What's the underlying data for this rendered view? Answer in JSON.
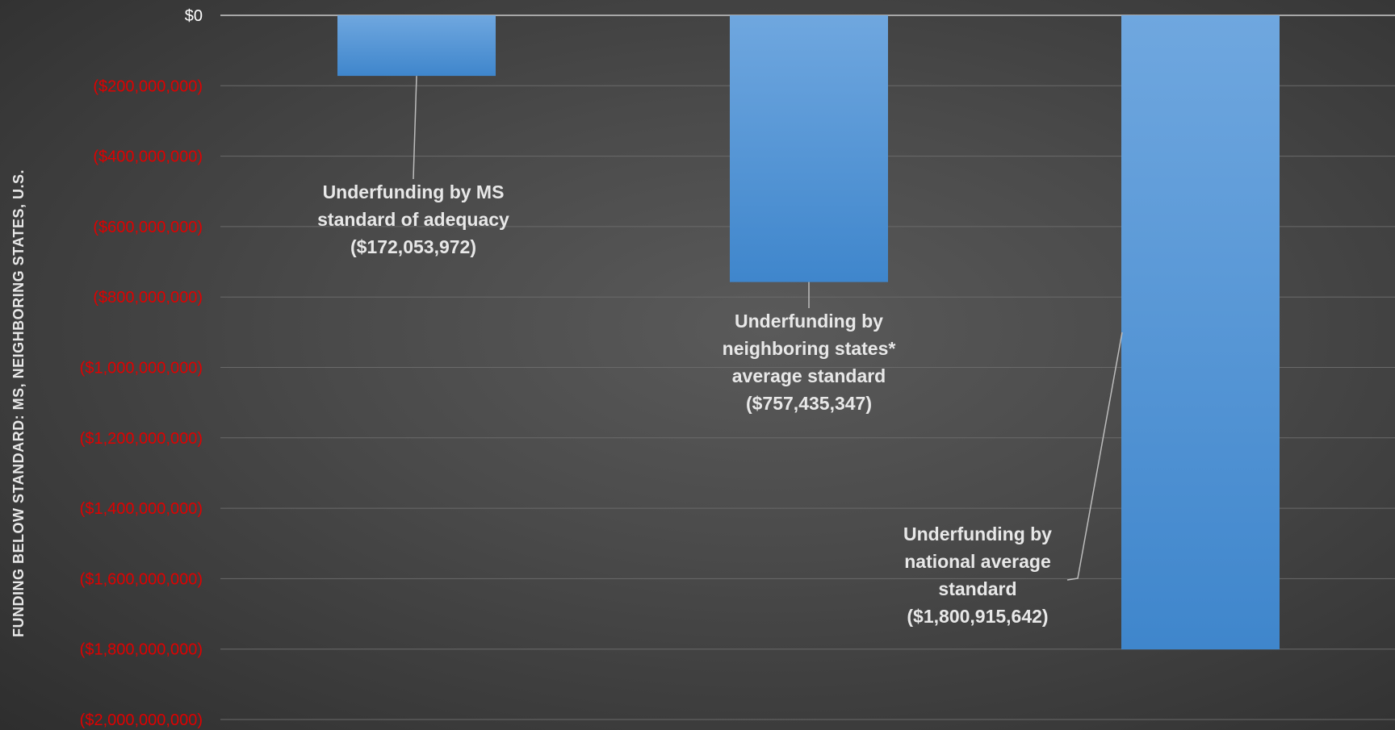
{
  "chart_data": {
    "type": "bar",
    "ylabel": "FUNDING BELOW STANDARD:  MS, NEIGHBORING STATES, U.S.",
    "ylim": [
      -2000000000,
      0
    ],
    "yticks": [
      0,
      -200000000,
      -400000000,
      -600000000,
      -800000000,
      -1000000000,
      -1200000000,
      -1400000000,
      -1600000000,
      -1800000000,
      -2000000000
    ],
    "ytick_labels": [
      "$0",
      "($200,000,000)",
      "($400,000,000)",
      "($600,000,000)",
      "($800,000,000)",
      "($1,000,000,000)",
      "($1,200,000,000)",
      "($1,400,000,000)",
      "($1,600,000,000)",
      "($1,800,000,000)",
      "($2,000,000,000)"
    ],
    "categories": [
      "Underfunding by MS standard of adequacy",
      "Underfunding by neighboring states* average standard",
      "Underfunding by national average standard"
    ],
    "values": [
      -172053972,
      -757435347,
      -1800915642
    ],
    "annotations": [
      [
        "Underfunding by MS",
        "standard of adequacy",
        "($172,053,972)"
      ],
      [
        "Underfunding by",
        "neighboring states*",
        "average standard",
        "($757,435,347)"
      ],
      [
        "Underfunding by",
        "national average",
        "standard",
        "($1,800,915,642)"
      ]
    ],
    "grid": true,
    "legend": "none",
    "colors": {
      "bar": "#4a90d9",
      "bar_light": "#6ea8e0",
      "zero_label": "#ffffff",
      "negative_label": "#e00000",
      "gridline": "#6a6a6a",
      "text": "#e8e8e8"
    }
  }
}
